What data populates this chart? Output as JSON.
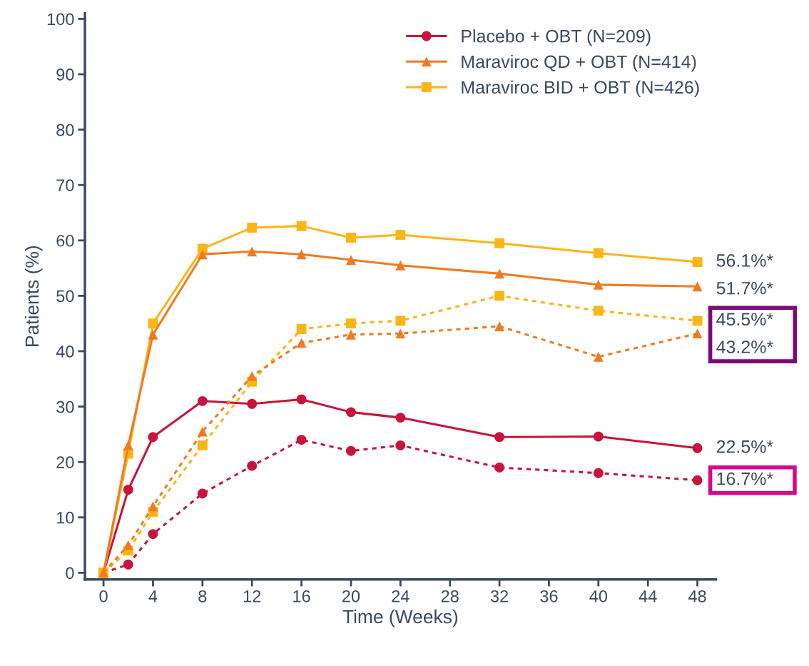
{
  "chart_data": {
    "type": "line",
    "xlabel": "Time (Weeks)",
    "ylabel": "Patients (%)",
    "x": [
      0,
      2,
      4,
      8,
      12,
      16,
      20,
      24,
      32,
      40,
      48
    ],
    "series": [
      {
        "name": "Placebo + OBT (N=209)",
        "color": "#c8143c",
        "marker": "circle",
        "line_style": "solid",
        "values": [
          0,
          15,
          24.5,
          31,
          30.5,
          31.3,
          29,
          28,
          24.5,
          24.6,
          22.5
        ]
      },
      {
        "name": "Maraviroc QD + OBT (N=414)",
        "color": "#f07a22",
        "marker": "triangle",
        "line_style": "solid",
        "values": [
          0,
          23,
          43,
          57.5,
          58,
          57.5,
          56.5,
          55.5,
          54,
          52,
          51.7
        ]
      },
      {
        "name": "Maraviroc BID + OBT (N=426)",
        "color": "#fbb516",
        "marker": "square",
        "line_style": "solid",
        "values": [
          0,
          21.5,
          45,
          58.5,
          62.3,
          62.6,
          60.5,
          61,
          59.5,
          57.7,
          56.1
        ]
      },
      {
        "color": "#c8143c",
        "marker": "circle",
        "line_style": "dashed",
        "values": [
          0,
          1.5,
          7,
          14.3,
          19.3,
          24,
          22,
          23,
          19,
          18,
          16.7
        ]
      },
      {
        "color": "#f07a22",
        "marker": "triangle",
        "line_style": "dashed",
        "values": [
          0,
          5,
          12,
          25.5,
          35.5,
          41.5,
          43,
          43.2,
          44.5,
          39,
          43.2
        ]
      },
      {
        "color": "#fbb516",
        "marker": "square",
        "line_style": "dashed",
        "values": [
          0,
          4,
          11,
          23,
          34.5,
          44,
          45,
          45.5,
          50,
          47.3,
          45.5
        ]
      }
    ],
    "annotations": [
      "56.1%*",
      "51.7%*",
      "45.5%*",
      "43.2%*",
      "22.5%*",
      "16.7%*"
    ],
    "xlim": [
      -1.5,
      49.5
    ],
    "ylim": [
      -1.2,
      101
    ],
    "xticks": [
      0,
      4,
      8,
      12,
      16,
      20,
      24,
      28,
      32,
      36,
      40,
      44,
      48
    ],
    "yticks": [
      0,
      10,
      20,
      30,
      40,
      50,
      60,
      70,
      80,
      90,
      100
    ],
    "grid": false,
    "legend": "top right"
  }
}
